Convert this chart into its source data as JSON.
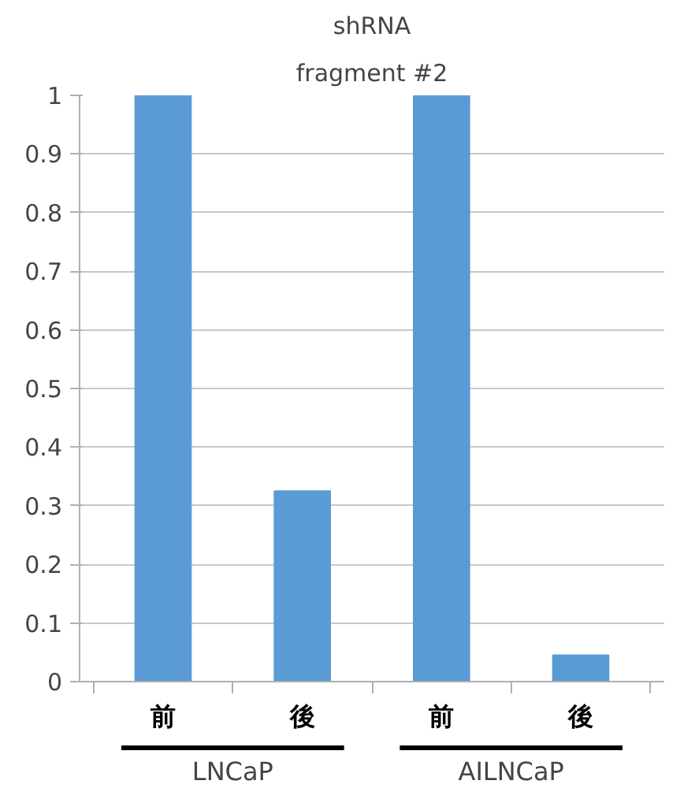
{
  "chart_data": {
    "type": "bar",
    "title": "shRNA",
    "subtitle": "fragment #2",
    "categories": [
      "前",
      "後",
      "前",
      "後"
    ],
    "values": [
      1,
      0.325,
      1,
      0.045
    ],
    "color": "#5b9bd5",
    "ylim": [
      0,
      1
    ],
    "yticks": [
      0,
      0.1,
      0.2,
      0.3,
      0.4,
      0.5,
      0.6,
      0.7,
      0.8,
      0.9,
      1
    ],
    "grid": "y",
    "annotations": [
      "LNCaP",
      "AILNCaP"
    ]
  }
}
